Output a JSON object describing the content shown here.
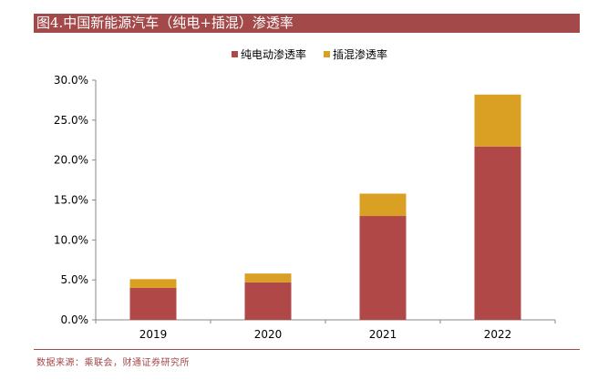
{
  "header": {
    "title": "图4.中国新能源汽车（纯电+插混）渗透率"
  },
  "source": "数据来源：乘联会，财通证券研究所",
  "colors": {
    "bev": "#b04847",
    "phev": "#d9a024",
    "accent": "#a3494a"
  },
  "chart_data": {
    "type": "bar",
    "stacked": true,
    "title": "",
    "categories": [
      "2019",
      "2020",
      "2021",
      "2022"
    ],
    "series": [
      {
        "name": "纯电动渗透率",
        "values": [
          4.0,
          4.7,
          13.0,
          21.7
        ]
      },
      {
        "name": "插混渗透率",
        "values": [
          1.1,
          1.1,
          2.8,
          6.5
        ]
      }
    ],
    "ylim": [
      0,
      30
    ],
    "yticks": [
      "0.0%",
      "5.0%",
      "10.0%",
      "15.0%",
      "20.0%",
      "25.0%",
      "30.0%"
    ],
    "ytick_values": [
      0,
      5,
      10,
      15,
      20,
      25,
      30
    ],
    "legend": "top-center",
    "grid": false
  }
}
